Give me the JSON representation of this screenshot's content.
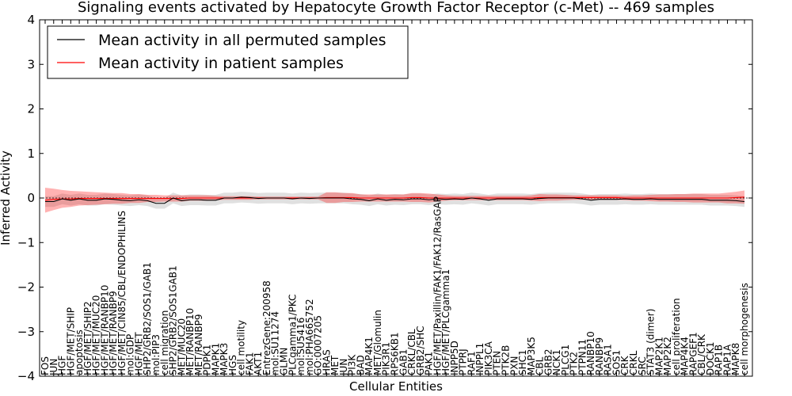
{
  "chart_data": {
    "type": "line",
    "title": "Signaling events activated by Hepatocyte Growth Factor Receptor (c-Met) -- 469 samples",
    "xlabel": "Cellular Entities",
    "ylabel": "Inferred Activity",
    "ylim": [
      -4,
      4
    ],
    "yticks": [
      -4,
      -3,
      -2,
      -1,
      0,
      1,
      2,
      3,
      4
    ],
    "legend": {
      "position": "top-left",
      "entries": [
        {
          "label": "Mean activity in all permuted samples",
          "color": "#000000"
        },
        {
          "label": "Mean activity in patient samples",
          "color": "#ff0000"
        }
      ]
    },
    "categories": [
      "FOS",
      "JUN",
      "HGF",
      "HGF/MET/SHIP",
      "apoptosis",
      "HGF/MET/SHIP2",
      "HGF/MET/MUC20",
      "HGF/MET/RANBP10",
      "HGF/MET/RANBP9",
      "HGF/MET/CIN85/CBL/ENDOPHILINS",
      "mol:GDP",
      "HGF/MET",
      "SHP2/GRB2/SOS1/GAB1",
      "mol:PIP3",
      "cell migration",
      "SHP2/GRB2/SOS1GAB1",
      "MET/MUC20",
      "MET/RANBP10",
      "MET/RANBP9",
      "PDPK1",
      "MAPK1",
      "MAPK3",
      "HGS",
      "cell motility",
      "FAK1",
      "AKT1",
      "EntrezGene:200958",
      "mol:SU11274",
      "GLMN",
      "PLCgamma1/PKC",
      "mol:SU5416",
      "mol:PHA665752",
      "GO:0007205",
      "HRAS",
      "MET",
      "JUN",
      "PI3K",
      "BAD",
      "MAP4K1",
      "MET/Glomulin",
      "PIK3R1",
      "RPS6KB1",
      "GAB1",
      "CRKL/CBL",
      "GRB2/SHC",
      "PAK1",
      "HGF/MET/Paxillin/FAK1/FAK12/RasGAP",
      "HGF/MET/PLCgamma1",
      "INPP5D",
      "PTPRJ",
      "RAF1",
      "INPPL1",
      "PIK3CA",
      "PTEN",
      "PTK2B",
      "PXN",
      "SHC1",
      "MAP3K5",
      "CBL",
      "GRB2",
      "NCK1",
      "PLCG1",
      "PTK2",
      "PTPN11",
      "RANBP10",
      "RANBP9",
      "RASA1",
      "SOS1",
      "CRK",
      "CRKL",
      "SRC",
      "STAT3 (dimer)",
      "MAP2K1",
      "MAP2K2",
      "cell proliferation",
      "MAP4K4",
      "RAPGEF1",
      "CBL/CRK",
      "DOCK1",
      "RAP1B",
      "RAP1A",
      "MAPK8",
      "cell morphogenesis"
    ],
    "series": [
      {
        "name": "Mean activity in patient samples",
        "color": "#ff0000",
        "values": [
          -0.05,
          -0.03,
          -0.02,
          -0.02,
          -0.01,
          -0.01,
          -0.01,
          -0.01,
          -0.01,
          -0.01,
          -0.01,
          -0.01,
          -0.01,
          -0.01,
          -0.01,
          -0.01,
          -0.01,
          0.0,
          0.0,
          0.0,
          0.0,
          0.0,
          0.0,
          0.0,
          0.0,
          0.0,
          0.0,
          0.0,
          0.0,
          0.0,
          0.0,
          0.0,
          0.0,
          0.01,
          0.01,
          0.01,
          0.01,
          0.0,
          0.0,
          0.0,
          0.0,
          0.0,
          0.0,
          0.01,
          0.01,
          0.0,
          0.0,
          0.0,
          0.0,
          0.0,
          0.0,
          0.0,
          0.0,
          0.0,
          0.0,
          0.0,
          0.0,
          0.0,
          0.01,
          0.01,
          0.01,
          0.01,
          0.01,
          0.01,
          0.01,
          0.01,
          0.01,
          0.01,
          0.0,
          0.0,
          0.0,
          0.0,
          0.0,
          0.0,
          0.0,
          0.0,
          0.0,
          0.0,
          0.0,
          0.0,
          0.0,
          0.01,
          0.02
        ],
        "band": [
          0.28,
          0.24,
          0.2,
          0.18,
          0.16,
          0.15,
          0.14,
          0.13,
          0.12,
          0.12,
          0.1,
          0.1,
          0.08,
          0.08,
          0.07,
          0.07,
          0.07,
          0.06,
          0.06,
          0.06,
          0.05,
          0.04,
          0.04,
          0.04,
          0.04,
          0.03,
          0.03,
          0.03,
          0.03,
          0.03,
          0.03,
          0.03,
          0.03,
          0.12,
          0.12,
          0.1,
          0.1,
          0.08,
          0.08,
          0.08,
          0.08,
          0.08,
          0.08,
          0.1,
          0.1,
          0.1,
          0.08,
          0.06,
          0.05,
          0.05,
          0.05,
          0.05,
          0.05,
          0.05,
          0.05,
          0.05,
          0.05,
          0.06,
          0.08,
          0.07,
          0.07,
          0.06,
          0.05,
          0.05,
          0.05,
          0.05,
          0.05,
          0.05,
          0.05,
          0.06,
          0.06,
          0.07,
          0.08,
          0.08,
          0.09,
          0.09,
          0.1,
          0.1,
          0.1,
          0.1,
          0.12,
          0.13,
          0.15
        ]
      },
      {
        "name": "Mean activity in all permuted samples",
        "color": "#000000",
        "values": [
          -0.08,
          -0.08,
          -0.02,
          -0.05,
          -0.02,
          -0.05,
          -0.05,
          -0.02,
          -0.03,
          -0.05,
          -0.06,
          -0.04,
          -0.06,
          -0.12,
          -0.12,
          0.0,
          -0.06,
          -0.04,
          -0.04,
          -0.05,
          -0.05,
          0.0,
          0.0,
          0.02,
          0.01,
          -0.01,
          0.0,
          0.0,
          0.0,
          -0.02,
          0.0,
          -0.01,
          0.0,
          0.0,
          0.0,
          0.0,
          -0.02,
          -0.03,
          -0.06,
          -0.02,
          -0.05,
          -0.03,
          -0.04,
          -0.02,
          -0.02,
          -0.04,
          -0.02,
          -0.03,
          -0.02,
          -0.03,
          0.0,
          -0.02,
          -0.05,
          -0.02,
          -0.02,
          -0.02,
          -0.02,
          -0.03,
          -0.01,
          0.0,
          0.0,
          0.0,
          0.0,
          -0.02,
          -0.05,
          -0.03,
          -0.03,
          -0.03,
          -0.02,
          -0.03,
          -0.03,
          -0.02,
          -0.03,
          -0.03,
          -0.03,
          -0.03,
          -0.03,
          -0.03,
          -0.05,
          -0.05,
          -0.05,
          -0.06,
          -0.08
        ],
        "band": [
          0.12,
          0.12,
          0.12,
          0.12,
          0.12,
          0.12,
          0.12,
          0.12,
          0.12,
          0.12,
          0.12,
          0.12,
          0.12,
          0.12,
          0.12,
          0.12,
          0.12,
          0.12,
          0.12,
          0.12,
          0.12,
          0.12,
          0.12,
          0.12,
          0.12,
          0.12,
          0.12,
          0.12,
          0.12,
          0.12,
          0.12,
          0.12,
          0.12,
          0.12,
          0.12,
          0.12,
          0.12,
          0.12,
          0.12,
          0.12,
          0.12,
          0.12,
          0.12,
          0.12,
          0.12,
          0.12,
          0.12,
          0.12,
          0.12,
          0.12,
          0.12,
          0.12,
          0.12,
          0.12,
          0.12,
          0.12,
          0.12,
          0.12,
          0.12,
          0.12,
          0.12,
          0.12,
          0.12,
          0.12,
          0.12,
          0.12,
          0.12,
          0.12,
          0.12,
          0.12,
          0.12,
          0.12,
          0.12,
          0.12,
          0.12,
          0.12,
          0.12,
          0.12,
          0.12,
          0.12,
          0.12,
          0.12,
          0.12
        ]
      }
    ]
  }
}
